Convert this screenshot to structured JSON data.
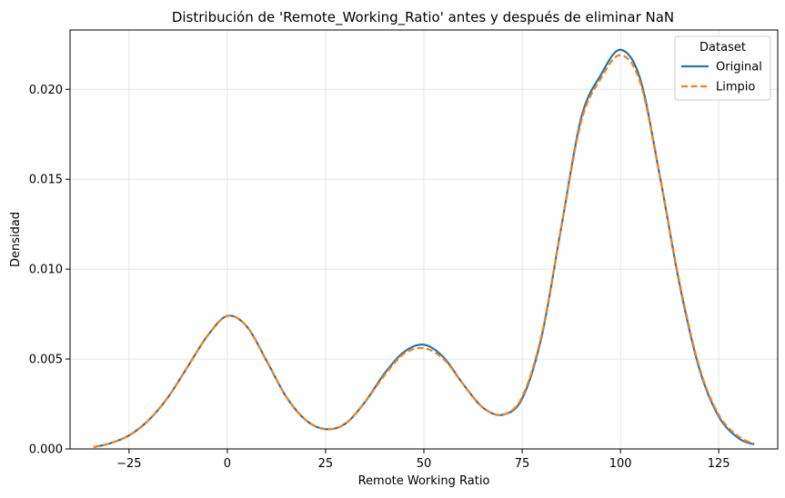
{
  "chart_data": {
    "type": "line",
    "title": "Distribución de 'Remote_Working_Ratio' antes y después de eliminar NaN",
    "xlabel": "Remote Working Ratio",
    "ylabel": "Densidad",
    "xlim": [
      -40,
      140
    ],
    "ylim": [
      0,
      0.0233
    ],
    "xticks": [
      -25,
      0,
      25,
      50,
      75,
      100,
      125
    ],
    "xtick_labels": [
      "−25",
      "0",
      "25",
      "50",
      "75",
      "100",
      "125"
    ],
    "yticks": [
      0.0,
      0.005,
      0.01,
      0.015,
      0.02
    ],
    "ytick_labels": [
      "0.000",
      "0.005",
      "0.010",
      "0.015",
      "0.020"
    ],
    "grid": true,
    "legend": {
      "title": "Dataset",
      "position": "top-right"
    },
    "series": [
      {
        "name": "Original",
        "color": "#1f77b4",
        "style": "solid",
        "x": [
          -34,
          -30,
          -25,
          -20,
          -15,
          -10,
          -5,
          0,
          5,
          10,
          15,
          20,
          25,
          30,
          35,
          40,
          45,
          50,
          55,
          60,
          65,
          70,
          75,
          80,
          85,
          90,
          95,
          100,
          105,
          110,
          115,
          120,
          125,
          130,
          134
        ],
        "y": [
          0.0001,
          0.0003,
          0.00075,
          0.0016,
          0.0029,
          0.0046,
          0.0063,
          0.0074,
          0.0068,
          0.0049,
          0.0029,
          0.0016,
          0.0011,
          0.0014,
          0.0026,
          0.0042,
          0.0054,
          0.0058,
          0.0051,
          0.0036,
          0.0023,
          0.0019,
          0.0028,
          0.0063,
          0.0124,
          0.0184,
          0.0208,
          0.0222,
          0.0206,
          0.0152,
          0.0092,
          0.0045,
          0.0018,
          0.0006,
          0.00025
        ]
      },
      {
        "name": "Limpio",
        "color": "#ff7f0e",
        "style": "dashed",
        "x": [
          -34,
          -30,
          -25,
          -20,
          -15,
          -10,
          -5,
          0,
          5,
          10,
          15,
          20,
          25,
          30,
          35,
          40,
          45,
          50,
          55,
          60,
          65,
          70,
          75,
          80,
          85,
          90,
          95,
          100,
          105,
          110,
          115,
          120,
          125,
          130,
          134
        ],
        "y": [
          0.0001,
          0.0003,
          0.00075,
          0.0016,
          0.0029,
          0.0046,
          0.0063,
          0.0074,
          0.0068,
          0.0049,
          0.0029,
          0.0016,
          0.0011,
          0.0014,
          0.0026,
          0.0041,
          0.0053,
          0.0056,
          0.005,
          0.0036,
          0.0023,
          0.0019,
          0.0029,
          0.0064,
          0.0124,
          0.0182,
          0.0206,
          0.0219,
          0.0204,
          0.0152,
          0.0093,
          0.0046,
          0.0019,
          0.0007,
          0.0003
        ]
      }
    ]
  }
}
